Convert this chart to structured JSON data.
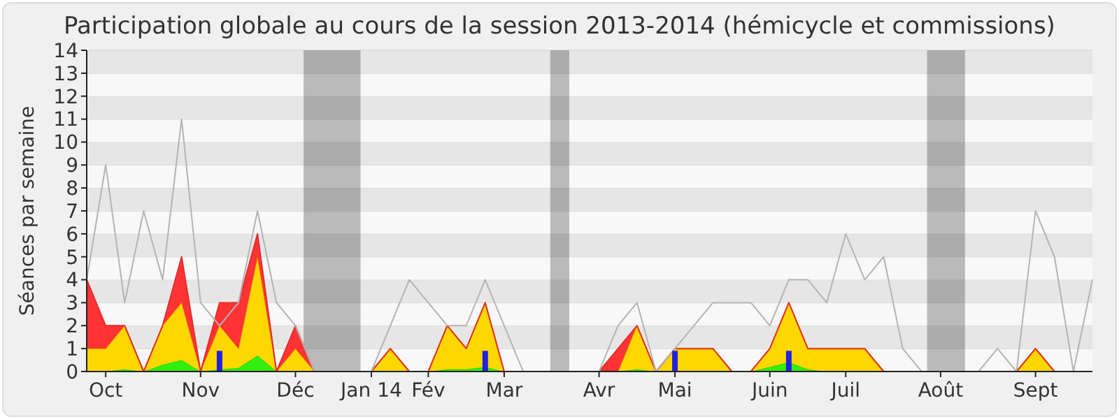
{
  "chart_data": {
    "type": "area",
    "title": "Participation globale au cours de la session 2013-2014 (hémicycle et commissions)",
    "ylabel": "Séances par semaine",
    "x": [
      "2013-09-30",
      "2013-10-07",
      "2013-10-14",
      "2013-10-21",
      "2013-10-28",
      "2013-11-04",
      "2013-11-11",
      "2013-11-18",
      "2013-11-25",
      "2013-12-02",
      "2013-12-09",
      "2013-12-16",
      "2013-12-23",
      "2013-12-30",
      "2014-01-06",
      "2014-01-13",
      "2014-01-20",
      "2014-01-27",
      "2014-02-03",
      "2014-02-10",
      "2014-02-17",
      "2014-02-24",
      "2014-03-03",
      "2014-03-10",
      "2014-03-17",
      "2014-03-24",
      "2014-03-31",
      "2014-04-07",
      "2014-04-14",
      "2014-04-21",
      "2014-04-28",
      "2014-05-05",
      "2014-05-12",
      "2014-05-19",
      "2014-05-26",
      "2014-06-02",
      "2014-06-09",
      "2014-06-16",
      "2014-06-23",
      "2014-06-30",
      "2014-07-07",
      "2014-07-14",
      "2014-07-21",
      "2014-07-28",
      "2014-08-04",
      "2014-08-11",
      "2014-08-18",
      "2014-08-25",
      "2014-09-01",
      "2014-09-08",
      "2014-09-15",
      "2014-09-22",
      "2014-09-29",
      "2014-10-06"
    ],
    "xlim": [
      "2013-09-30",
      "2014-10-06"
    ],
    "xticks": [
      {
        "value": "2013-10-07",
        "label": "Oct"
      },
      {
        "value": "2013-11-11",
        "label": "Nov"
      },
      {
        "value": "2013-12-16",
        "label": "Déc"
      },
      {
        "value": "2014-01-13",
        "label": "Jan 14"
      },
      {
        "value": "2014-02-03",
        "label": "Fév"
      },
      {
        "value": "2014-03-03",
        "label": "Mar"
      },
      {
        "value": "2014-04-07",
        "label": "Avr"
      },
      {
        "value": "2014-05-05",
        "label": "Mai"
      },
      {
        "value": "2014-06-09",
        "label": "Juin"
      },
      {
        "value": "2014-07-07",
        "label": "Juil"
      },
      {
        "value": "2014-08-11",
        "label": "Août"
      },
      {
        "value": "2014-09-15",
        "label": "Sept"
      }
    ],
    "ylim": [
      0,
      14
    ],
    "yticks": [
      0,
      1,
      2,
      3,
      4,
      5,
      6,
      7,
      8,
      9,
      10,
      11,
      12,
      13,
      14
    ],
    "grid": "y",
    "stacked": true,
    "bands": [
      {
        "axis": "x",
        "from": "2013-12-19",
        "to": "2014-01-09"
      },
      {
        "axis": "x",
        "from": "2014-03-20",
        "to": "2014-03-27"
      },
      {
        "axis": "x",
        "from": "2014-08-06",
        "to": "2014-08-20"
      }
    ],
    "series": [
      {
        "color": "#33ee11",
        "values": [
          0,
          0,
          0.1,
          0,
          0.3,
          0.5,
          0,
          0.1,
          0.15,
          0.7,
          0,
          0,
          0,
          0,
          0,
          0,
          0,
          0,
          0,
          0.1,
          0.1,
          0.2,
          0,
          0,
          0,
          0,
          0,
          0,
          0,
          0.1,
          0,
          0,
          0,
          0,
          0,
          0,
          0.2,
          0.4,
          0.1,
          0,
          0,
          0,
          0,
          0,
          0,
          0,
          0,
          0,
          0,
          0,
          0,
          0,
          0,
          0
        ]
      },
      {
        "color": "#ffd700",
        "values": [
          1,
          1,
          1.9,
          0,
          1.7,
          2.5,
          0,
          1.9,
          0.85,
          4.3,
          0,
          1,
          0,
          0,
          0,
          0,
          1,
          0,
          0,
          1.9,
          0.9,
          2.8,
          0,
          0,
          0,
          0,
          0,
          0,
          0,
          1.9,
          0,
          1,
          1,
          1,
          0,
          0,
          0.8,
          2.6,
          0.9,
          1,
          1,
          1,
          0,
          0,
          0,
          0,
          0,
          0,
          0,
          0,
          1,
          0,
          0,
          0
        ]
      },
      {
        "color": "#ff3333",
        "values": [
          3,
          1,
          0,
          0,
          0,
          2,
          0,
          1,
          2,
          1,
          0,
          1,
          0,
          0,
          0,
          0,
          0,
          0,
          0,
          0,
          0,
          0,
          0,
          0,
          0,
          0,
          0,
          0,
          1,
          0,
          0,
          0,
          0,
          0,
          0,
          0,
          0,
          0,
          0,
          0,
          0,
          0,
          0,
          0,
          0,
          0,
          0,
          0,
          0,
          0,
          0,
          0,
          0,
          0
        ]
      },
      {
        "type": "line",
        "color": "#b4b4b4",
        "values": [
          4,
          9,
          3,
          7,
          4,
          11,
          3,
          2,
          3,
          7,
          3,
          2,
          0,
          0,
          0,
          0,
          2,
          4,
          3,
          2,
          2,
          4,
          2,
          0,
          0,
          0,
          0,
          0,
          2,
          3,
          0,
          1,
          2,
          3,
          3,
          3,
          2,
          4,
          4,
          3,
          6,
          4,
          5,
          1,
          0,
          0,
          0,
          0,
          1,
          0,
          7,
          5,
          0,
          4
        ]
      },
      {
        "type": "bar",
        "color": "#2222dd",
        "values": [
          null,
          null,
          null,
          null,
          null,
          null,
          null,
          0.9,
          null,
          null,
          null,
          null,
          null,
          null,
          null,
          null,
          null,
          null,
          null,
          null,
          null,
          0.9,
          null,
          null,
          null,
          null,
          null,
          null,
          null,
          null,
          null,
          0.9,
          null,
          null,
          null,
          null,
          null,
          0.9,
          null,
          null,
          null,
          null,
          null,
          null,
          null,
          null,
          null,
          null,
          null,
          null,
          null,
          null,
          null,
          null
        ]
      }
    ]
  }
}
